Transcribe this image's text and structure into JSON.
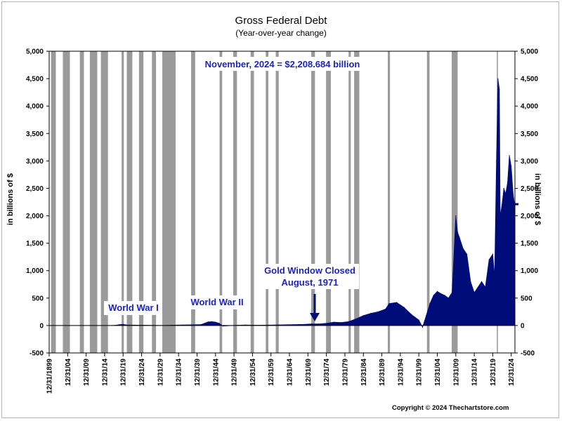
{
  "chart_data": {
    "type": "area",
    "title": "Gross Federal Debt",
    "subtitle": "(Year-over-year change)",
    "ylabel": "in billions of $",
    "ylim": [
      -500,
      5000
    ],
    "yticks": [
      "-500",
      "0",
      "500",
      "1,000",
      "1,500",
      "2,000",
      "2,500",
      "3,000",
      "3,500",
      "4,000",
      "4,500",
      "5,000"
    ],
    "xlim": [
      1899,
      2025
    ],
    "xticks": [
      "12/31/1899",
      "12/31/04",
      "12/31/09",
      "12/31/14",
      "12/31/19",
      "12/31/24",
      "12/31/29",
      "12/31/34",
      "12/31/39",
      "12/31/44",
      "12/31/49",
      "12/31/54",
      "12/31/59",
      "12/31/64",
      "12/31/69",
      "12/31/74",
      "12/31/79",
      "12/31/84",
      "12/31/89",
      "12/31/94",
      "12/31/99",
      "12/31/04",
      "12/31/09",
      "12/31/14",
      "12/31/19",
      "12/31/24"
    ],
    "grid": false,
    "series": [
      {
        "color": "#000c7a",
        "x": [
          1899,
          1916,
          1917,
          1918,
          1919,
          1920,
          1930,
          1932,
          1935,
          1940,
          1941,
          1942,
          1943,
          1944,
          1945,
          1946,
          1947,
          1950,
          1952,
          1955,
          1960,
          1965,
          1968,
          1970,
          1972,
          1974,
          1975,
          1976,
          1978,
          1980,
          1982,
          1984,
          1986,
          1988,
          1990,
          1991,
          1993,
          1995,
          1997,
          1998,
          1999,
          2000,
          2001,
          2002,
          2003,
          2004,
          2005,
          2006,
          2007,
          2008,
          2008.5,
          2009,
          2009.5,
          2010,
          2011,
          2012,
          2013,
          2014,
          2015,
          2016,
          2017,
          2018,
          2019,
          2019.5,
          2020,
          2020.4,
          2020.8,
          2021,
          2021.5,
          2022,
          2022.5,
          2023,
          2023.5,
          2024,
          2024.5,
          2024.9
        ],
        "values": [
          0,
          0,
          5,
          15,
          20,
          10,
          0,
          5,
          10,
          15,
          40,
          65,
          70,
          60,
          40,
          -10,
          -5,
          5,
          10,
          5,
          10,
          15,
          20,
          30,
          30,
          40,
          50,
          60,
          55,
          70,
          120,
          180,
          220,
          250,
          300,
          400,
          420,
          330,
          200,
          150,
          100,
          -30,
          180,
          400,
          550,
          620,
          580,
          550,
          500,
          600,
          1300,
          2000,
          1700,
          1600,
          1400,
          1300,
          800,
          600,
          700,
          800,
          700,
          1200,
          1300,
          900,
          3000,
          4500,
          4300,
          2000,
          2200,
          2500,
          2400,
          2600,
          3100,
          2900,
          2400,
          2208
        ]
      }
    ],
    "recession_bands": [
      [
        1899.5,
        1900.8
      ],
      [
        1902.7,
        1904.6
      ],
      [
        1907.3,
        1908.4
      ],
      [
        1910.0,
        1912.0
      ],
      [
        1913.0,
        1914.9
      ],
      [
        1918.6,
        1919.2
      ],
      [
        1920.0,
        1921.5
      ],
      [
        1923.3,
        1924.5
      ],
      [
        1926.8,
        1927.9
      ],
      [
        1929.6,
        1933.2
      ],
      [
        1937.4,
        1938.5
      ],
      [
        1945.1,
        1945.8
      ],
      [
        1948.8,
        1949.8
      ],
      [
        1953.5,
        1954.4
      ],
      [
        1957.6,
        1958.3
      ],
      [
        1960.3,
        1961.1
      ],
      [
        1969.9,
        1970.9
      ],
      [
        1973.9,
        1975.2
      ],
      [
        1980.0,
        1980.6
      ],
      [
        1981.5,
        1982.9
      ],
      [
        1990.6,
        1991.2
      ],
      [
        2001.2,
        2001.9
      ],
      [
        2007.9,
        2009.5
      ],
      [
        2020.1,
        2020.4
      ]
    ],
    "annotations": {
      "wwi": "World War I",
      "wwii": "World War II",
      "gold_line1": "Gold Window Closed",
      "gold_line2": "August, 1971",
      "latest": "November, 2024 = $2,208.684 billion"
    }
  },
  "footer": {
    "copyright": "Copyright © 2024 Thechartstore.com"
  }
}
